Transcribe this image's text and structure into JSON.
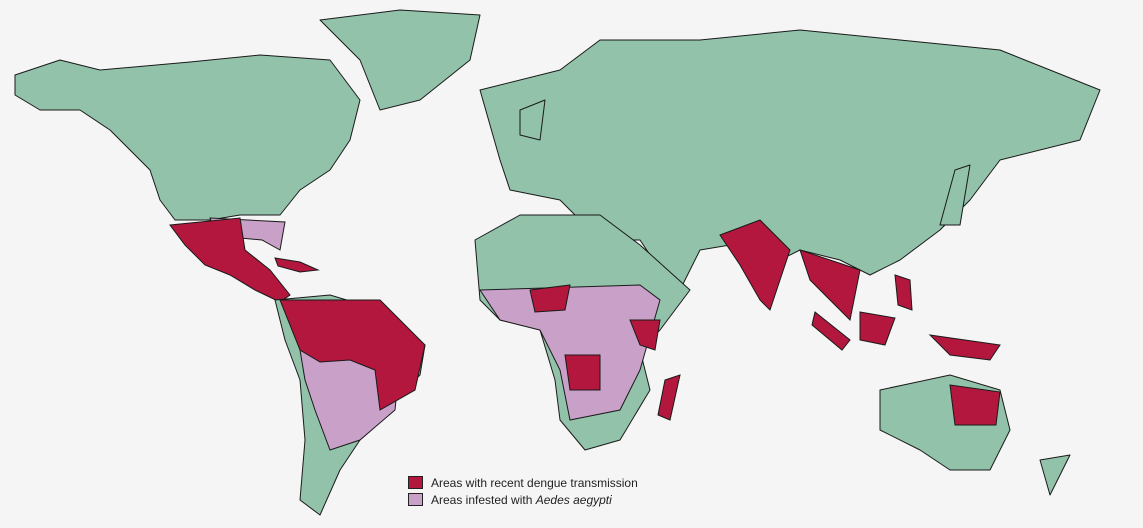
{
  "legend": {
    "items": [
      {
        "text": "Areas with recent dengue transmission",
        "color": "#b3173e"
      },
      {
        "text": "Areas infested with",
        "species": "Aedes aegypti",
        "color": "#c9a0c8"
      }
    ]
  }
}
